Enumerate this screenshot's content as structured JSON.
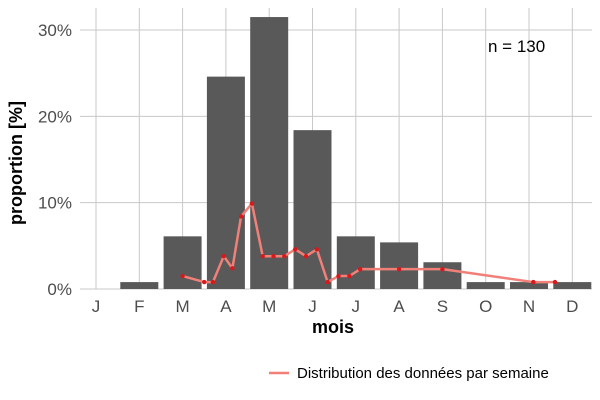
{
  "chart_data": {
    "type": "bar",
    "xlabel": "mois",
    "ylabel": "proportion [%]",
    "categories": [
      "J",
      "F",
      "M",
      "A",
      "M",
      "J",
      "J",
      "A",
      "S",
      "O",
      "N",
      "D"
    ],
    "values": [
      0,
      0.8,
      6.1,
      24.6,
      31.5,
      18.4,
      6.1,
      5.4,
      3.1,
      0.8,
      0.8,
      0.8
    ],
    "ylim": [
      0,
      33
    ],
    "yticks": [
      0,
      10,
      20,
      30
    ],
    "ytick_labels": [
      "0%",
      "10%",
      "20%",
      "30%"
    ],
    "grid": true,
    "annotation": "n = 130",
    "colors": {
      "bar": "#595959",
      "line": "#f08078",
      "points": "#d7191c",
      "grid": "#c8c8c8"
    },
    "series": [
      {
        "name": "Distribution des données par semaine",
        "type": "line",
        "points": [
          [
            3.0,
            1.5
          ],
          [
            3.5,
            0.8
          ],
          [
            3.7,
            0.8
          ],
          [
            3.95,
            3.8
          ],
          [
            4.15,
            2.4
          ],
          [
            4.35,
            8.4
          ],
          [
            4.6,
            9.9
          ],
          [
            4.85,
            3.8
          ],
          [
            5.1,
            3.8
          ],
          [
            5.35,
            3.8
          ],
          [
            5.6,
            4.6
          ],
          [
            5.85,
            3.8
          ],
          [
            6.1,
            4.6
          ],
          [
            6.35,
            0.8
          ],
          [
            6.6,
            1.5
          ],
          [
            6.85,
            1.5
          ],
          [
            7.1,
            2.3
          ],
          [
            8.0,
            2.3
          ],
          [
            9.0,
            2.3
          ],
          [
            11.1,
            0.8
          ],
          [
            11.6,
            0.8
          ]
        ]
      }
    ],
    "legend": {
      "position": "bottom-right",
      "entries": [
        "Distribution des données par semaine"
      ]
    }
  }
}
